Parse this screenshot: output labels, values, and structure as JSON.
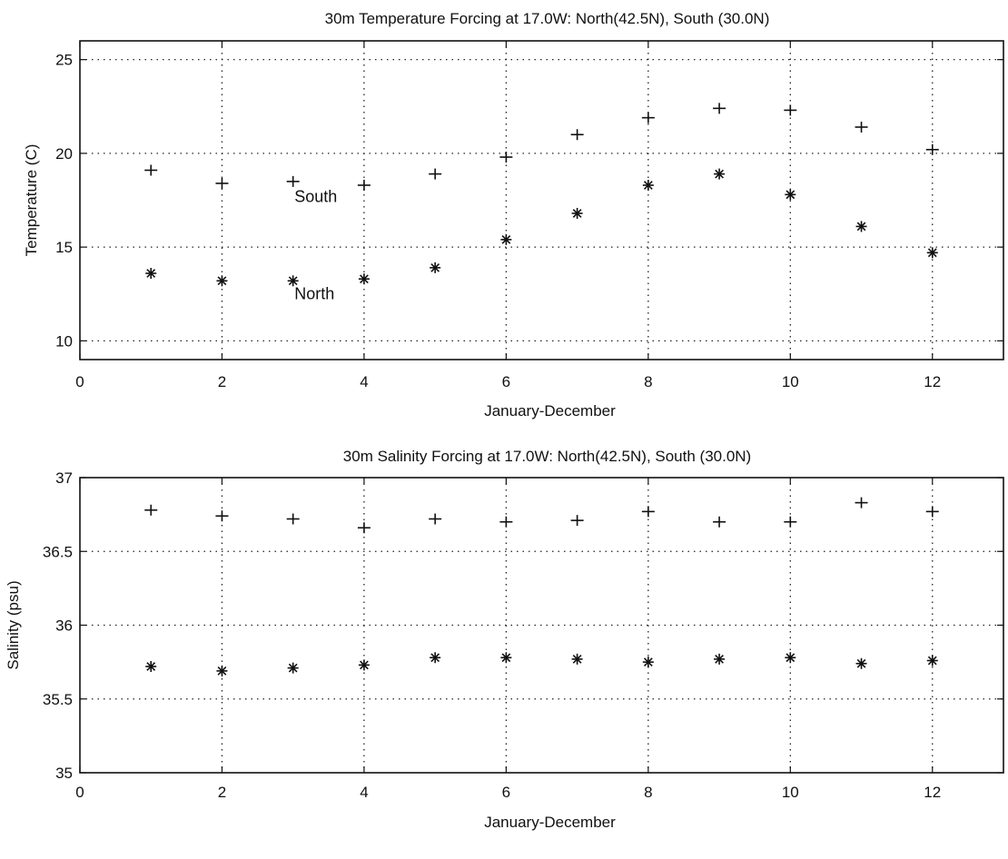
{
  "chart_data": [
    {
      "type": "scatter",
      "title": "30m Temperature Forcing at 17.0W:  North(42.5N), South (30.0N)",
      "xlabel": "January-December",
      "ylabel": "Temperature (C)",
      "xlim": [
        0,
        13
      ],
      "ylim": [
        9,
        26
      ],
      "xticks": [
        0,
        2,
        4,
        6,
        8,
        10,
        12
      ],
      "xtick_labels": [
        "0",
        "2",
        "4",
        "6",
        "8",
        "10",
        "12"
      ],
      "yticks": [
        10,
        15,
        20,
        25
      ],
      "ytick_labels": [
        "10",
        "15",
        "20",
        "25"
      ],
      "grid": true,
      "x": [
        1,
        2,
        3,
        4,
        5,
        6,
        7,
        8,
        9,
        10,
        11,
        12
      ],
      "series": [
        {
          "name": "South",
          "marker": "plus",
          "values": [
            19.1,
            18.4,
            18.5,
            18.3,
            18.9,
            19.8,
            21.0,
            21.9,
            22.4,
            22.3,
            21.4,
            20.2
          ]
        },
        {
          "name": "North",
          "marker": "asterisk",
          "values": [
            13.6,
            13.2,
            13.2,
            13.3,
            13.9,
            15.4,
            16.8,
            18.3,
            18.9,
            17.8,
            16.1,
            14.7
          ]
        }
      ],
      "annotations": [
        {
          "text": "South",
          "x": 3.02,
          "y": 17.7
        },
        {
          "text": "North",
          "x": 3.02,
          "y": 12.5
        }
      ]
    },
    {
      "type": "scatter",
      "title": "30m Salinity Forcing at 17.0W:  North(42.5N), South (30.0N)",
      "xlabel": "January-December",
      "ylabel": "Salinity (psu)",
      "xlim": [
        0,
        13
      ],
      "ylim": [
        35,
        37
      ],
      "xticks": [
        0,
        2,
        4,
        6,
        8,
        10,
        12
      ],
      "xtick_labels": [
        "0",
        "2",
        "4",
        "6",
        "8",
        "10",
        "12"
      ],
      "yticks": [
        35,
        35.5,
        36,
        36.5,
        37
      ],
      "ytick_labels": [
        "35",
        "35.5",
        "36",
        "36.5",
        "37"
      ],
      "grid": true,
      "x": [
        1,
        2,
        3,
        4,
        5,
        6,
        7,
        8,
        9,
        10,
        11,
        12
      ],
      "series": [
        {
          "name": "South",
          "marker": "plus",
          "values": [
            36.78,
            36.74,
            36.72,
            36.66,
            36.72,
            36.7,
            36.71,
            36.77,
            36.7,
            36.7,
            36.83,
            36.77
          ]
        },
        {
          "name": "North",
          "marker": "asterisk",
          "values": [
            35.72,
            35.69,
            35.71,
            35.73,
            35.78,
            35.78,
            35.77,
            35.75,
            35.77,
            35.78,
            35.74,
            35.76
          ]
        }
      ],
      "annotations": []
    }
  ]
}
